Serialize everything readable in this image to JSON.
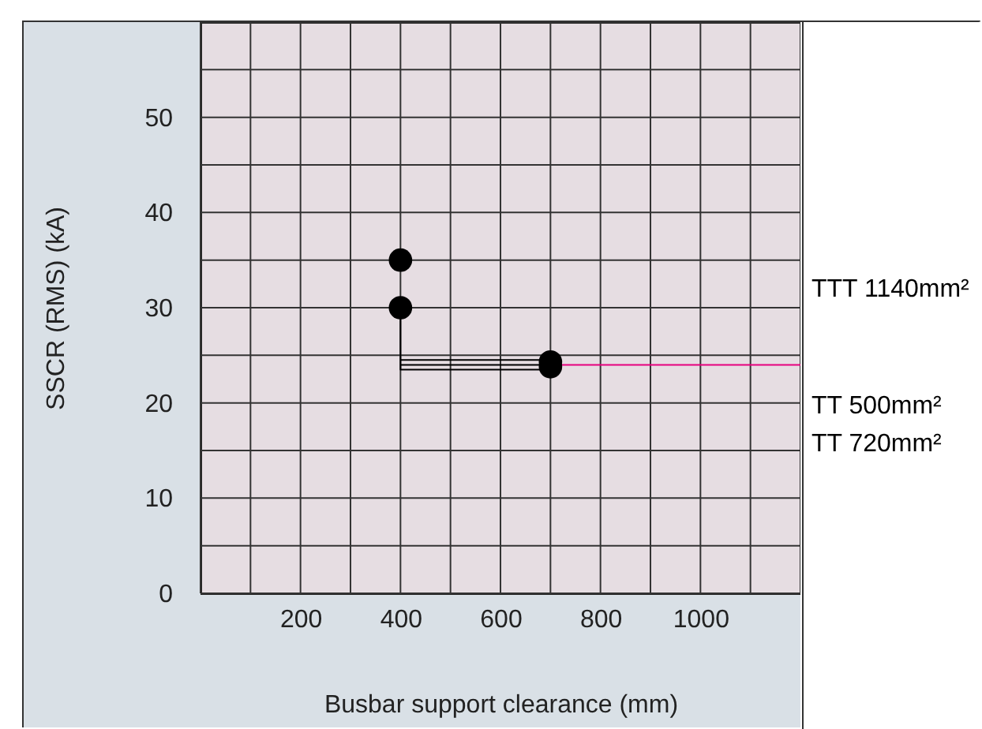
{
  "chart_data": {
    "type": "scatter",
    "xlabel": "Busbar support clearance (mm)",
    "ylabel": "SSCR (RMS)  (kA)",
    "xlim": [
      0,
      1200
    ],
    "ylim": [
      0,
      60
    ],
    "xticks": [
      {
        "value": 0,
        "label": null
      },
      {
        "value": 100,
        "label": null
      },
      200,
      {
        "value": 300,
        "label": null
      },
      400,
      {
        "value": 500,
        "label": null
      },
      600,
      {
        "value": 700,
        "label": null
      },
      800,
      {
        "value": 900,
        "label": null
      },
      1000,
      {
        "value": 1100,
        "label": null
      },
      {
        "value": 1200,
        "label": null
      }
    ],
    "yticks": [
      0,
      {
        "value": 5,
        "label": null
      },
      10,
      {
        "value": 15,
        "label": null
      },
      20,
      {
        "value": 25,
        "label": null
      },
      30,
      {
        "value": 35,
        "label": null
      },
      40,
      {
        "value": 45,
        "label": null
      },
      50,
      {
        "value": 55,
        "label": null
      },
      {
        "value": 60,
        "label": null
      }
    ],
    "grid": true,
    "series": [
      {
        "type": "line",
        "color": "#000000",
        "x": [
          400,
          400,
          700
        ],
        "values": [
          30,
          23.5,
          23.5
        ]
      },
      {
        "type": "line",
        "color": "#000000",
        "x": [
          400,
          700
        ],
        "values": [
          24,
          24
        ]
      },
      {
        "type": "line",
        "color": "#000000",
        "x": [
          400,
          700
        ],
        "values": [
          24.5,
          24.5
        ]
      },
      {
        "type": "line",
        "color": "#e6007e",
        "x": [
          700,
          1200
        ],
        "values": [
          24,
          24
        ]
      },
      {
        "type": "scatter",
        "color": "#000000",
        "marker": "circle",
        "x": [
          400,
          400,
          700,
          700
        ],
        "values": [
          35,
          30,
          24.3,
          23.8
        ]
      }
    ],
    "annotations": [
      "TTT 1140mm²",
      "TT 500mm²",
      "TT 720mm²"
    ]
  }
}
